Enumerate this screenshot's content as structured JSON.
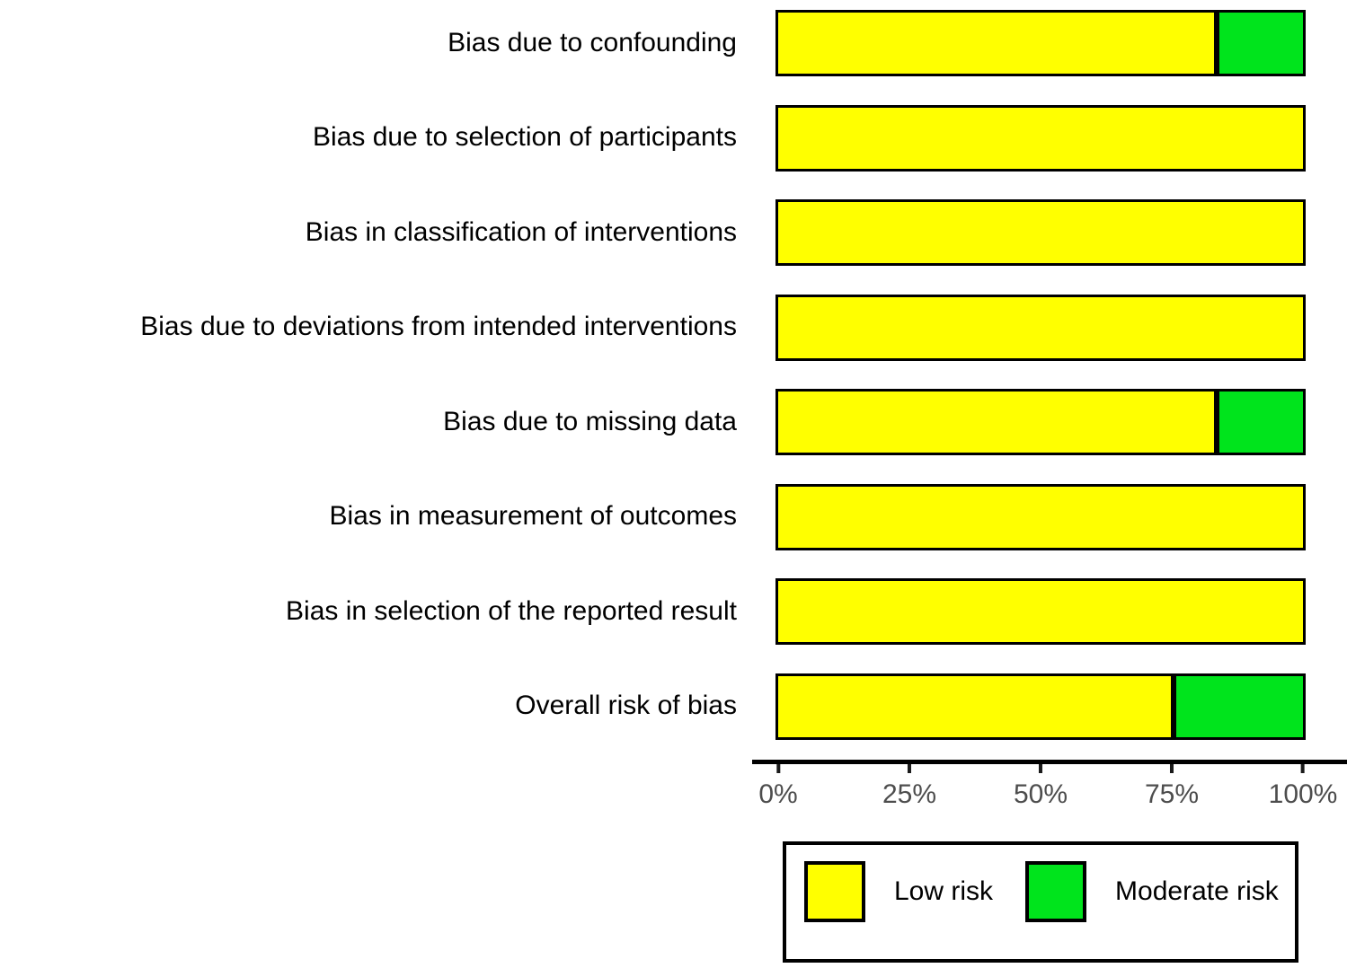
{
  "chart_data": {
    "type": "bar",
    "orientation": "horizontal",
    "stacked": true,
    "title": "",
    "xlabel": "",
    "ylabel": "",
    "categories": [
      "Bias due to confounding",
      "Bias due to selection of participants",
      "Bias in classification of interventions",
      "Bias due to deviations from intended interventions",
      "Bias due to missing data",
      "Bias in measurement of outcomes",
      "Bias in selection of the reported result",
      "Overall risk of bias"
    ],
    "series": [
      {
        "name": "Low risk",
        "color": "#ffff00",
        "values": [
          83.3,
          100,
          100,
          100,
          83.3,
          100,
          100,
          75
        ]
      },
      {
        "name": "Moderate risk",
        "color": "#00e41c",
        "values": [
          16.7,
          0,
          0,
          0,
          16.7,
          0,
          0,
          25
        ]
      }
    ],
    "xlim": [
      0,
      100
    ],
    "x_ticks": [
      "0%",
      "25%",
      "50%",
      "75%",
      "100%"
    ],
    "x_tick_values": [
      0,
      25,
      50,
      75,
      100
    ],
    "grid": false,
    "legend_position": "bottom-right",
    "bar_border_color": "#000000",
    "axis_line_color": "#000000",
    "tick_label_color": "#4d4d4d"
  }
}
